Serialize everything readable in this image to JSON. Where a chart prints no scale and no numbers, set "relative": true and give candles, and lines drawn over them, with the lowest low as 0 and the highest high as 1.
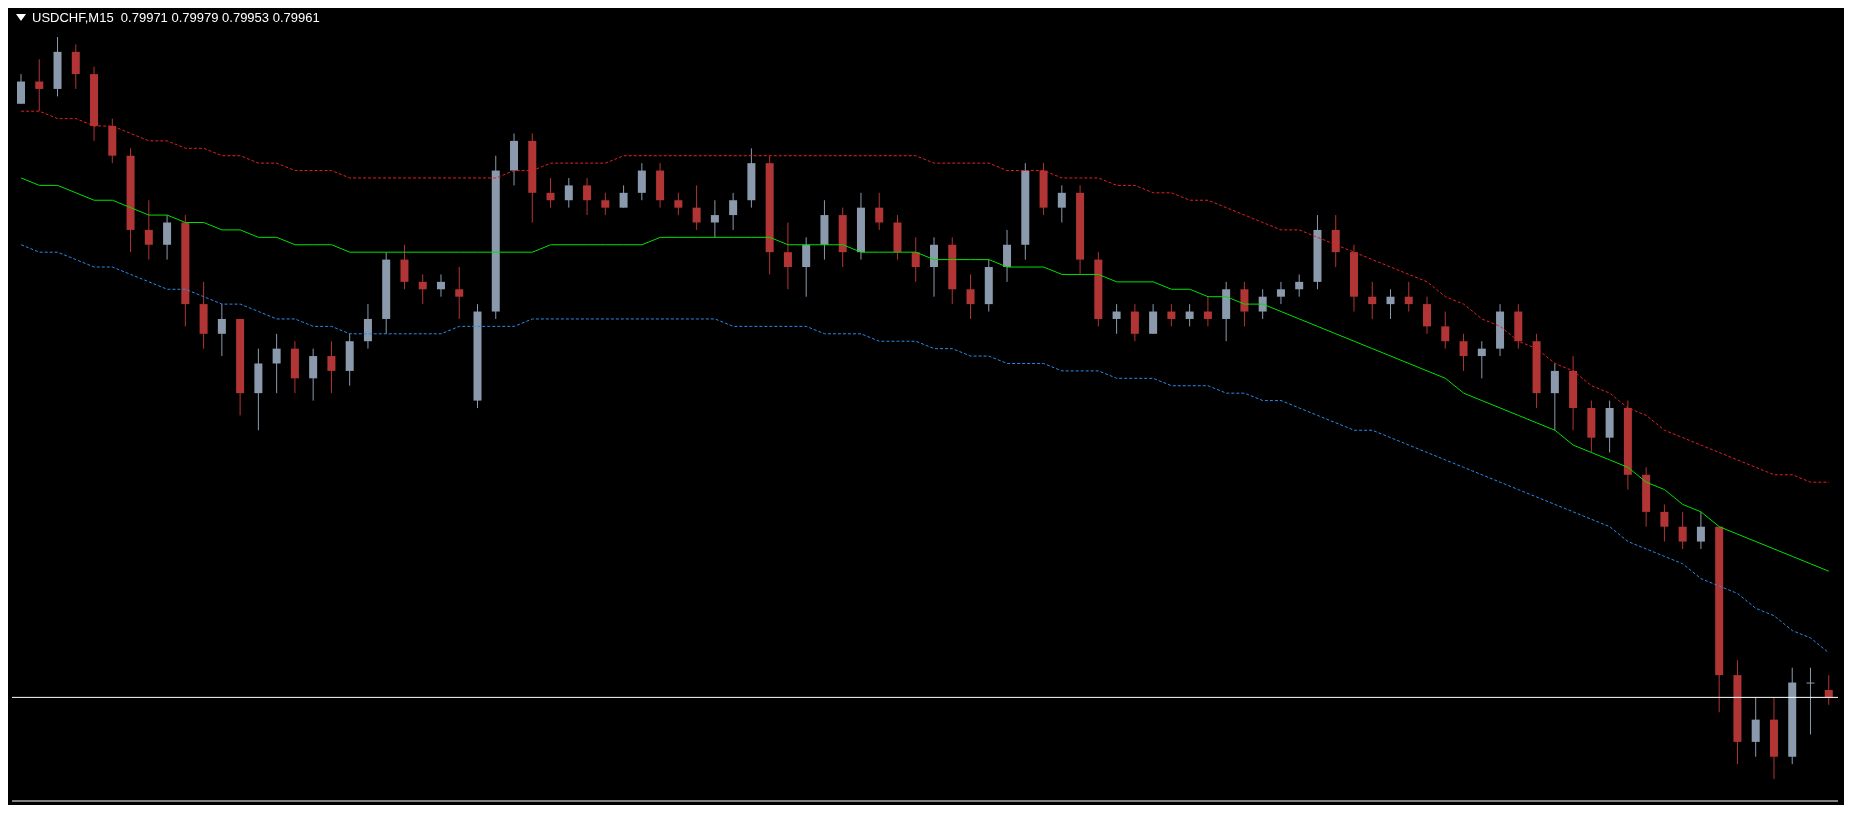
{
  "chart_data": {
    "type": "candlestick",
    "title": "USDCHF,M15  0.79971 0.79979 0.79953 0.79961",
    "relative": true,
    "categories": [
      null,
      null,
      null,
      null,
      null,
      null,
      null,
      null,
      null,
      null,
      null,
      null,
      null,
      null,
      null,
      null,
      null,
      null,
      null,
      null,
      null,
      null,
      null,
      null,
      null,
      null,
      null,
      null,
      null,
      null,
      null,
      null,
      null,
      null,
      null,
      null,
      null,
      null,
      null,
      null,
      null,
      null,
      null,
      null,
      null,
      null,
      null,
      null,
      null,
      null,
      null,
      null,
      null,
      null,
      null,
      null,
      null,
      null,
      null,
      null,
      null,
      null,
      null,
      null,
      null,
      null,
      null,
      null,
      null,
      null,
      null,
      null,
      null,
      null,
      null,
      null,
      null,
      null,
      null,
      null,
      null,
      null,
      null,
      null,
      null,
      null,
      null,
      null,
      null,
      null,
      null,
      null,
      null,
      null,
      null,
      null,
      null,
      null,
      null,
      null
    ],
    "ohlc": [
      [
        0.91,
        0.95,
        0.91,
        0.94
      ],
      [
        0.94,
        0.97,
        0.9,
        0.93
      ],
      [
        0.93,
        1.0,
        0.92,
        0.98
      ],
      [
        0.98,
        0.99,
        0.93,
        0.95
      ],
      [
        0.95,
        0.96,
        0.86,
        0.88
      ],
      [
        0.88,
        0.89,
        0.83,
        0.84
      ],
      [
        0.84,
        0.85,
        0.71,
        0.74
      ],
      [
        0.74,
        0.78,
        0.7,
        0.72
      ],
      [
        0.72,
        0.76,
        0.7,
        0.75
      ],
      [
        0.75,
        0.76,
        0.61,
        0.64
      ],
      [
        0.64,
        0.67,
        0.58,
        0.6
      ],
      [
        0.6,
        0.64,
        0.57,
        0.62
      ],
      [
        0.62,
        0.62,
        0.49,
        0.52
      ],
      [
        0.52,
        0.58,
        0.47,
        0.56
      ],
      [
        0.56,
        0.6,
        0.52,
        0.58
      ],
      [
        0.58,
        0.59,
        0.52,
        0.54
      ],
      [
        0.54,
        0.58,
        0.51,
        0.57
      ],
      [
        0.57,
        0.59,
        0.52,
        0.55
      ],
      [
        0.55,
        0.6,
        0.53,
        0.59
      ],
      [
        0.59,
        0.64,
        0.58,
        0.62
      ],
      [
        0.62,
        0.71,
        0.6,
        0.7
      ],
      [
        0.7,
        0.72,
        0.66,
        0.67
      ],
      [
        0.67,
        0.68,
        0.64,
        0.66
      ],
      [
        0.66,
        0.68,
        0.65,
        0.67
      ],
      [
        0.66,
        0.69,
        0.62,
        0.65
      ],
      [
        0.51,
        0.64,
        0.5,
        0.63
      ],
      [
        0.63,
        0.84,
        0.62,
        0.82
      ],
      [
        0.82,
        0.87,
        0.8,
        0.86
      ],
      [
        0.86,
        0.87,
        0.75,
        0.79
      ],
      [
        0.79,
        0.81,
        0.77,
        0.78
      ],
      [
        0.78,
        0.81,
        0.77,
        0.8
      ],
      [
        0.8,
        0.81,
        0.76,
        0.78
      ],
      [
        0.78,
        0.79,
        0.76,
        0.77
      ],
      [
        0.77,
        0.8,
        0.77,
        0.79
      ],
      [
        0.79,
        0.83,
        0.78,
        0.82
      ],
      [
        0.82,
        0.83,
        0.77,
        0.78
      ],
      [
        0.78,
        0.79,
        0.76,
        0.77
      ],
      [
        0.77,
        0.8,
        0.74,
        0.75
      ],
      [
        0.75,
        0.78,
        0.73,
        0.76
      ],
      [
        0.76,
        0.79,
        0.74,
        0.78
      ],
      [
        0.78,
        0.85,
        0.77,
        0.83
      ],
      [
        0.83,
        0.84,
        0.68,
        0.71
      ],
      [
        0.71,
        0.75,
        0.66,
        0.69
      ],
      [
        0.69,
        0.73,
        0.65,
        0.72
      ],
      [
        0.72,
        0.78,
        0.7,
        0.76
      ],
      [
        0.76,
        0.77,
        0.69,
        0.71
      ],
      [
        0.71,
        0.79,
        0.7,
        0.77
      ],
      [
        0.77,
        0.79,
        0.74,
        0.75
      ],
      [
        0.75,
        0.76,
        0.7,
        0.71
      ],
      [
        0.71,
        0.73,
        0.67,
        0.69
      ],
      [
        0.69,
        0.73,
        0.65,
        0.72
      ],
      [
        0.72,
        0.73,
        0.64,
        0.66
      ],
      [
        0.66,
        0.68,
        0.62,
        0.64
      ],
      [
        0.64,
        0.7,
        0.63,
        0.69
      ],
      [
        0.69,
        0.74,
        0.67,
        0.72
      ],
      [
        0.72,
        0.83,
        0.7,
        0.82
      ],
      [
        0.82,
        0.83,
        0.76,
        0.77
      ],
      [
        0.77,
        0.8,
        0.75,
        0.79
      ],
      [
        0.79,
        0.8,
        0.68,
        0.7
      ],
      [
        0.7,
        0.71,
        0.61,
        0.62
      ],
      [
        0.62,
        0.64,
        0.6,
        0.63
      ],
      [
        0.63,
        0.64,
        0.59,
        0.6
      ],
      [
        0.6,
        0.64,
        0.6,
        0.63
      ],
      [
        0.63,
        0.64,
        0.61,
        0.62
      ],
      [
        0.62,
        0.64,
        0.61,
        0.63
      ],
      [
        0.63,
        0.65,
        0.61,
        0.62
      ],
      [
        0.62,
        0.67,
        0.59,
        0.66
      ],
      [
        0.66,
        0.67,
        0.61,
        0.63
      ],
      [
        0.63,
        0.66,
        0.62,
        0.65
      ],
      [
        0.65,
        0.67,
        0.64,
        0.66
      ],
      [
        0.66,
        0.68,
        0.65,
        0.67
      ],
      [
        0.67,
        0.76,
        0.66,
        0.74
      ],
      [
        0.74,
        0.76,
        0.69,
        0.71
      ],
      [
        0.71,
        0.72,
        0.63,
        0.65
      ],
      [
        0.65,
        0.67,
        0.62,
        0.64
      ],
      [
        0.64,
        0.66,
        0.62,
        0.65
      ],
      [
        0.65,
        0.67,
        0.63,
        0.64
      ],
      [
        0.64,
        0.65,
        0.6,
        0.61
      ],
      [
        0.61,
        0.63,
        0.58,
        0.59
      ],
      [
        0.59,
        0.6,
        0.55,
        0.57
      ],
      [
        0.57,
        0.59,
        0.54,
        0.58
      ],
      [
        0.58,
        0.64,
        0.57,
        0.63
      ],
      [
        0.63,
        0.64,
        0.58,
        0.59
      ],
      [
        0.59,
        0.6,
        0.5,
        0.52
      ],
      [
        0.52,
        0.56,
        0.47,
        0.55
      ],
      [
        0.55,
        0.57,
        0.47,
        0.5
      ],
      [
        0.5,
        0.51,
        0.44,
        0.46
      ],
      [
        0.46,
        0.51,
        0.44,
        0.5
      ],
      [
        0.5,
        0.51,
        0.39,
        0.41
      ],
      [
        0.41,
        0.42,
        0.34,
        0.36
      ],
      [
        0.36,
        0.37,
        0.32,
        0.34
      ],
      [
        0.34,
        0.36,
        0.31,
        0.32
      ],
      [
        0.32,
        0.36,
        0.31,
        0.34
      ],
      [
        0.34,
        0.34,
        0.09,
        0.14
      ],
      [
        0.14,
        0.16,
        0.02,
        0.05
      ],
      [
        0.05,
        0.11,
        0.03,
        0.08
      ],
      [
        0.08,
        0.11,
        0.0,
        0.03
      ],
      [
        0.03,
        0.15,
        0.02,
        0.13
      ],
      [
        0.13,
        0.15,
        0.06,
        0.13
      ],
      [
        0.12,
        0.14,
        0.1,
        0.11
      ]
    ],
    "colors": [
      "#8a9aac",
      "#b13535",
      "#8a9aac",
      "#b13535",
      "#b13535",
      "#b13535",
      "#b13535",
      "#b13535",
      "#8a9aac",
      "#b13535",
      "#b13535",
      "#8a9aac",
      "#b13535",
      "#8a9aac",
      "#8a9aac",
      "#b13535",
      "#8a9aac",
      "#b13535",
      "#8a9aac",
      "#8a9aac",
      "#8a9aac",
      "#b13535",
      "#b13535",
      "#8a9aac",
      "#b13535",
      "#8a9aac",
      "#8a9aac",
      "#8a9aac",
      "#b13535",
      "#b13535",
      "#8a9aac",
      "#b13535",
      "#b13535",
      "#8a9aac",
      "#8a9aac",
      "#b13535",
      "#b13535",
      "#b13535",
      "#8a9aac",
      "#8a9aac",
      "#8a9aac",
      "#b13535",
      "#b13535",
      "#8a9aac",
      "#8a9aac",
      "#b13535",
      "#8a9aac",
      "#b13535",
      "#b13535",
      "#b13535",
      "#8a9aac",
      "#b13535",
      "#b13535",
      "#8a9aac",
      "#8a9aac",
      "#8a9aac",
      "#b13535",
      "#8a9aac",
      "#b13535",
      "#b13535",
      "#8a9aac",
      "#b13535",
      "#8a9aac",
      "#b13535",
      "#8a9aac",
      "#b13535",
      "#8a9aac",
      "#b13535",
      "#8a9aac",
      "#8a9aac",
      "#8a9aac",
      "#8a9aac",
      "#b13535",
      "#b13535",
      "#b13535",
      "#8a9aac",
      "#b13535",
      "#b13535",
      "#b13535",
      "#b13535",
      "#8a9aac",
      "#8a9aac",
      "#b13535",
      "#b13535",
      "#8a9aac",
      "#b13535",
      "#b13535",
      "#8a9aac",
      "#b13535",
      "#b13535",
      "#b13535",
      "#b13535",
      "#8a9aac",
      "#b13535",
      "#b13535",
      "#8a9aac",
      "#b13535",
      "#8a9aac",
      "#8a9aac",
      "#b13535"
    ],
    "series": [
      {
        "type": "line",
        "color": "#e02020",
        "line_style": "dotted",
        "marker": "none",
        "values": [
          0.9,
          0.9,
          0.89,
          0.89,
          0.88,
          0.88,
          0.87,
          0.86,
          0.86,
          0.85,
          0.85,
          0.84,
          0.84,
          0.83,
          0.83,
          0.82,
          0.82,
          0.82,
          0.81,
          0.81,
          0.81,
          0.81,
          0.81,
          0.81,
          0.81,
          0.81,
          0.81,
          0.82,
          0.82,
          0.83,
          0.83,
          0.83,
          0.83,
          0.84,
          0.84,
          0.84,
          0.84,
          0.84,
          0.84,
          0.84,
          0.84,
          0.84,
          0.84,
          0.84,
          0.84,
          0.84,
          0.84,
          0.84,
          0.84,
          0.84,
          0.83,
          0.83,
          0.83,
          0.83,
          0.82,
          0.82,
          0.82,
          0.81,
          0.81,
          0.81,
          0.8,
          0.8,
          0.79,
          0.79,
          0.78,
          0.78,
          0.77,
          0.76,
          0.75,
          0.74,
          0.74,
          0.73,
          0.72,
          0.71,
          0.7,
          0.69,
          0.68,
          0.67,
          0.65,
          0.64,
          0.62,
          0.61,
          0.59,
          0.58,
          0.56,
          0.55,
          0.53,
          0.52,
          0.5,
          0.49,
          0.47,
          0.46,
          0.45,
          0.44,
          0.43,
          0.42,
          0.41,
          0.41,
          0.4,
          0.4
        ]
      },
      {
        "type": "line",
        "color": "#00e000",
        "line_style": "solid",
        "marker": "none",
        "values": [
          0.81,
          0.8,
          0.8,
          0.79,
          0.78,
          0.78,
          0.77,
          0.76,
          0.76,
          0.75,
          0.75,
          0.74,
          0.74,
          0.73,
          0.73,
          0.72,
          0.72,
          0.72,
          0.71,
          0.71,
          0.71,
          0.71,
          0.71,
          0.71,
          0.71,
          0.71,
          0.71,
          0.71,
          0.71,
          0.72,
          0.72,
          0.72,
          0.72,
          0.72,
          0.72,
          0.73,
          0.73,
          0.73,
          0.73,
          0.73,
          0.73,
          0.73,
          0.72,
          0.72,
          0.72,
          0.72,
          0.71,
          0.71,
          0.71,
          0.71,
          0.7,
          0.7,
          0.7,
          0.7,
          0.69,
          0.69,
          0.69,
          0.68,
          0.68,
          0.68,
          0.67,
          0.67,
          0.67,
          0.66,
          0.66,
          0.65,
          0.65,
          0.64,
          0.64,
          0.63,
          0.62,
          0.61,
          0.6,
          0.59,
          0.58,
          0.57,
          0.56,
          0.55,
          0.54,
          0.52,
          0.51,
          0.5,
          0.49,
          0.48,
          0.47,
          0.45,
          0.44,
          0.43,
          0.42,
          0.4,
          0.39,
          0.37,
          0.36,
          0.34,
          0.33,
          0.32,
          0.31,
          0.3,
          0.29,
          0.28
        ]
      },
      {
        "type": "line",
        "color": "#2a8ae6",
        "line_style": "dotted",
        "marker": "none",
        "values": [
          0.72,
          0.71,
          0.71,
          0.7,
          0.69,
          0.69,
          0.68,
          0.67,
          0.66,
          0.66,
          0.65,
          0.64,
          0.64,
          0.63,
          0.62,
          0.62,
          0.61,
          0.61,
          0.6,
          0.6,
          0.6,
          0.6,
          0.6,
          0.6,
          0.61,
          0.61,
          0.61,
          0.61,
          0.62,
          0.62,
          0.62,
          0.62,
          0.62,
          0.62,
          0.62,
          0.62,
          0.62,
          0.62,
          0.62,
          0.61,
          0.61,
          0.61,
          0.61,
          0.61,
          0.6,
          0.6,
          0.6,
          0.59,
          0.59,
          0.59,
          0.58,
          0.58,
          0.57,
          0.57,
          0.56,
          0.56,
          0.56,
          0.55,
          0.55,
          0.55,
          0.54,
          0.54,
          0.54,
          0.53,
          0.53,
          0.53,
          0.52,
          0.52,
          0.51,
          0.51,
          0.5,
          0.49,
          0.48,
          0.47,
          0.47,
          0.46,
          0.45,
          0.44,
          0.43,
          0.42,
          0.41,
          0.4,
          0.39,
          0.38,
          0.37,
          0.36,
          0.35,
          0.34,
          0.32,
          0.31,
          0.3,
          0.29,
          0.27,
          0.26,
          0.25,
          0.23,
          0.22,
          0.2,
          0.19,
          0.17
        ]
      }
    ],
    "ref_lines": [
      {
        "axis": "y",
        "value": 0.11,
        "color": "#ffffff"
      }
    ]
  }
}
